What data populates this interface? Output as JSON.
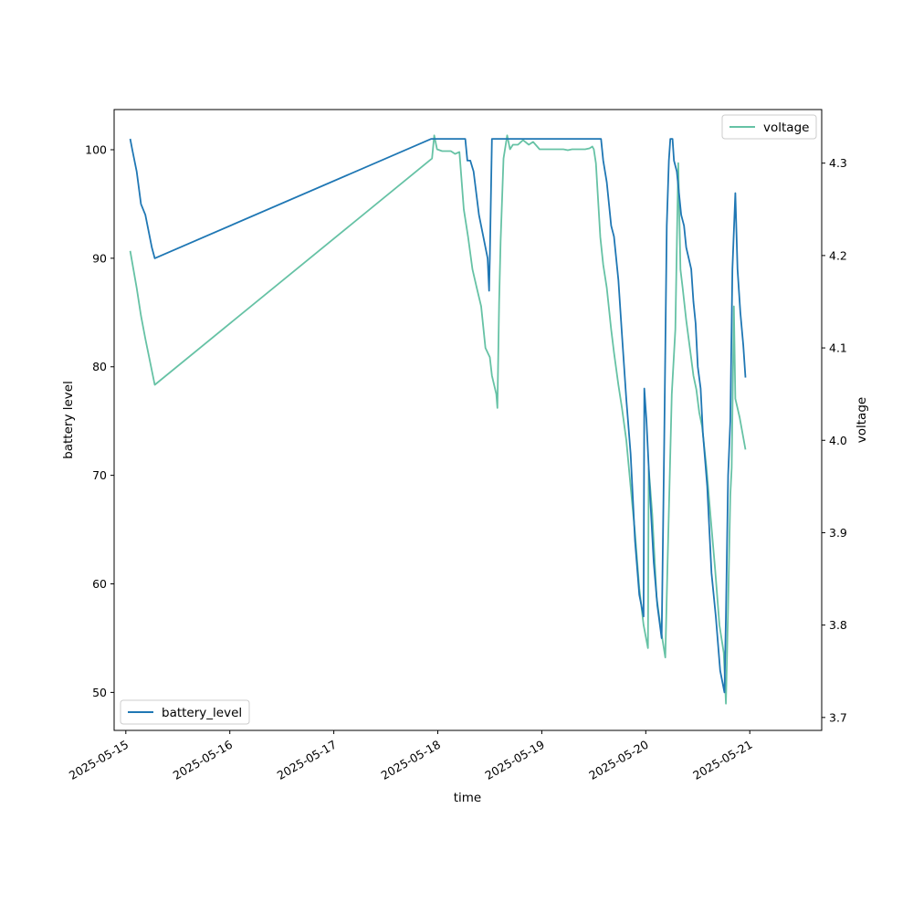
{
  "chart_data": {
    "type": "line",
    "xlabel": "time",
    "ylabel_left": "battery level",
    "ylabel_right": "voltage",
    "x_ticks": [
      "2025-05-15",
      "2025-05-16",
      "2025-05-17",
      "2025-05-18",
      "2025-05-19",
      "2025-05-20",
      "2025-05-21"
    ],
    "y_left_ticks": [
      50,
      60,
      70,
      80,
      90,
      100
    ],
    "y_right_ticks": [
      "3.7",
      "3.8",
      "3.9",
      "4.0",
      "4.1",
      "4.2",
      "4.3"
    ],
    "x_range": [
      "2025-05-14T21:18",
      "2025-05-21T16:36"
    ],
    "y_left_range": [
      46.5,
      103.7
    ],
    "y_right_range": [
      3.686,
      4.358
    ],
    "grid": false,
    "series": [
      {
        "name": "battery_level",
        "axis": "left",
        "color": "#1f77b4",
        "legend_position": "lower-left",
        "points": [
          [
            "2025-05-15T01:00",
            101
          ],
          [
            "2025-05-15T01:30",
            100
          ],
          [
            "2025-05-15T02:30",
            98
          ],
          [
            "2025-05-15T03:30",
            95
          ],
          [
            "2025-05-15T04:30",
            94
          ],
          [
            "2025-05-15T06:00",
            91
          ],
          [
            "2025-05-15T06:40",
            90
          ],
          [
            "2025-05-17T22:30",
            101
          ],
          [
            "2025-05-18T06:20",
            101
          ],
          [
            "2025-05-18T06:50",
            99
          ],
          [
            "2025-05-18T07:30",
            99
          ],
          [
            "2025-05-18T08:15",
            98
          ],
          [
            "2025-05-18T09:30",
            94
          ],
          [
            "2025-05-18T11:30",
            90
          ],
          [
            "2025-05-18T11:50",
            87
          ],
          [
            "2025-05-18T12:00",
            90
          ],
          [
            "2025-05-18T12:30",
            101
          ],
          [
            "2025-05-19T13:40",
            101
          ],
          [
            "2025-05-19T14:10",
            99
          ],
          [
            "2025-05-19T15:00",
            97
          ],
          [
            "2025-05-19T16:00",
            93
          ],
          [
            "2025-05-19T16:40",
            92
          ],
          [
            "2025-05-19T17:40",
            88
          ],
          [
            "2025-05-19T18:30",
            83
          ],
          [
            "2025-05-19T19:30",
            77
          ],
          [
            "2025-05-19T20:30",
            72
          ],
          [
            "2025-05-19T21:30",
            64
          ],
          [
            "2025-05-19T22:30",
            59
          ],
          [
            "2025-05-19T23:30",
            57
          ],
          [
            "2025-05-19T23:40",
            78
          ],
          [
            "2025-05-20T00:10",
            75
          ],
          [
            "2025-05-20T01:00",
            68
          ],
          [
            "2025-05-20T01:50",
            62
          ],
          [
            "2025-05-20T02:40",
            58
          ],
          [
            "2025-05-20T03:40",
            55
          ],
          [
            "2025-05-20T04:15",
            73
          ],
          [
            "2025-05-20T04:50",
            93
          ],
          [
            "2025-05-20T05:20",
            99
          ],
          [
            "2025-05-20T05:40",
            101
          ],
          [
            "2025-05-20T06:10",
            101
          ],
          [
            "2025-05-20T06:30",
            99
          ],
          [
            "2025-05-20T07:10",
            98
          ],
          [
            "2025-05-20T08:10",
            94
          ],
          [
            "2025-05-20T08:50",
            93
          ],
          [
            "2025-05-20T09:20",
            91
          ],
          [
            "2025-05-20T10:30",
            89
          ],
          [
            "2025-05-20T11:00",
            86
          ],
          [
            "2025-05-20T11:30",
            84
          ],
          [
            "2025-05-20T12:00",
            80
          ],
          [
            "2025-05-20T12:40",
            78
          ],
          [
            "2025-05-20T13:10",
            74
          ],
          [
            "2025-05-20T14:10",
            69
          ],
          [
            "2025-05-20T15:10",
            61
          ],
          [
            "2025-05-20T16:10",
            57
          ],
          [
            "2025-05-20T17:10",
            52
          ],
          [
            "2025-05-20T18:10",
            50
          ],
          [
            "2025-05-20T18:30",
            57
          ],
          [
            "2025-05-20T19:00",
            70
          ],
          [
            "2025-05-20T19:30",
            75
          ],
          [
            "2025-05-20T20:00",
            89
          ],
          [
            "2025-05-20T20:40",
            96
          ],
          [
            "2025-05-20T21:10",
            89
          ],
          [
            "2025-05-20T21:50",
            85
          ],
          [
            "2025-05-20T22:30",
            82
          ],
          [
            "2025-05-20T23:00",
            79
          ]
        ]
      },
      {
        "name": "voltage",
        "axis": "right",
        "color": "#66c2a5",
        "legend_position": "upper-right",
        "points": [
          [
            "2025-05-15T01:00",
            4.205
          ],
          [
            "2025-05-15T02:30",
            4.165
          ],
          [
            "2025-05-15T03:30",
            4.135
          ],
          [
            "2025-05-15T04:30",
            4.11
          ],
          [
            "2025-05-15T06:40",
            4.06
          ],
          [
            "2025-05-17T22:40",
            4.305
          ],
          [
            "2025-05-17T23:10",
            4.33
          ],
          [
            "2025-05-17T23:50",
            4.315
          ],
          [
            "2025-05-18T01:00",
            4.313
          ],
          [
            "2025-05-18T03:00",
            4.313
          ],
          [
            "2025-05-18T04:00",
            4.31
          ],
          [
            "2025-05-18T05:00",
            4.312
          ],
          [
            "2025-05-18T06:00",
            4.25
          ],
          [
            "2025-05-18T07:00",
            4.22
          ],
          [
            "2025-05-18T08:00",
            4.185
          ],
          [
            "2025-05-18T09:00",
            4.165
          ],
          [
            "2025-05-18T10:00",
            4.145
          ],
          [
            "2025-05-18T11:00",
            4.1
          ],
          [
            "2025-05-18T12:00",
            4.09
          ],
          [
            "2025-05-18T12:30",
            4.07
          ],
          [
            "2025-05-18T13:30",
            4.05
          ],
          [
            "2025-05-18T13:45",
            4.035
          ],
          [
            "2025-05-18T14:10",
            4.15
          ],
          [
            "2025-05-18T14:30",
            4.215
          ],
          [
            "2025-05-18T15:10",
            4.305
          ],
          [
            "2025-05-18T15:40",
            4.32
          ],
          [
            "2025-05-18T16:00",
            4.33
          ],
          [
            "2025-05-18T16:40",
            4.315
          ],
          [
            "2025-05-18T17:20",
            4.32
          ],
          [
            "2025-05-18T18:30",
            4.32
          ],
          [
            "2025-05-18T19:40",
            4.325
          ],
          [
            "2025-05-18T21:00",
            4.32
          ],
          [
            "2025-05-18T22:00",
            4.323
          ],
          [
            "2025-05-18T23:30",
            4.315
          ],
          [
            "2025-05-19T02:00",
            4.315
          ],
          [
            "2025-05-19T05:00",
            4.315
          ],
          [
            "2025-05-19T06:00",
            4.314
          ],
          [
            "2025-05-19T07:00",
            4.315
          ],
          [
            "2025-05-19T10:00",
            4.315
          ],
          [
            "2025-05-19T11:00",
            4.316
          ],
          [
            "2025-05-19T11:40",
            4.318
          ],
          [
            "2025-05-19T12:00",
            4.315
          ],
          [
            "2025-05-19T12:30",
            4.3
          ],
          [
            "2025-05-19T13:30",
            4.22
          ],
          [
            "2025-05-19T14:10",
            4.19
          ],
          [
            "2025-05-19T15:00",
            4.165
          ],
          [
            "2025-05-19T16:00",
            4.12
          ],
          [
            "2025-05-19T16:40",
            4.095
          ],
          [
            "2025-05-19T17:40",
            4.06
          ],
          [
            "2025-05-19T18:30",
            4.035
          ],
          [
            "2025-05-19T19:30",
            4.0
          ],
          [
            "2025-05-19T20:30",
            3.95
          ],
          [
            "2025-05-19T21:30",
            3.9
          ],
          [
            "2025-05-19T22:30",
            3.84
          ],
          [
            "2025-05-19T23:30",
            3.8
          ],
          [
            "2025-05-20T00:30",
            3.775
          ],
          [
            "2025-05-20T00:40",
            3.97
          ],
          [
            "2025-05-20T01:30",
            3.92
          ],
          [
            "2025-05-20T02:30",
            3.83
          ],
          [
            "2025-05-20T03:30",
            3.795
          ],
          [
            "2025-05-20T04:30",
            3.765
          ],
          [
            "2025-05-20T05:00",
            3.86
          ],
          [
            "2025-05-20T06:00",
            4.05
          ],
          [
            "2025-05-20T06:50",
            4.12
          ],
          [
            "2025-05-20T07:30",
            4.3
          ],
          [
            "2025-05-20T08:00",
            4.185
          ],
          [
            "2025-05-20T08:30",
            4.165
          ],
          [
            "2025-05-20T09:20",
            4.13
          ],
          [
            "2025-05-20T10:10",
            4.1
          ],
          [
            "2025-05-20T11:00",
            4.07
          ],
          [
            "2025-05-20T11:40",
            4.055
          ],
          [
            "2025-05-20T12:20",
            4.03
          ],
          [
            "2025-05-20T13:00",
            4.015
          ],
          [
            "2025-05-20T14:00",
            3.97
          ],
          [
            "2025-05-20T15:00",
            3.915
          ],
          [
            "2025-05-20T16:00",
            3.86
          ],
          [
            "2025-05-20T17:00",
            3.8
          ],
          [
            "2025-05-20T18:00",
            3.77
          ],
          [
            "2025-05-20T18:30",
            3.715
          ],
          [
            "2025-05-20T19:00",
            3.82
          ],
          [
            "2025-05-20T19:30",
            3.94
          ],
          [
            "2025-05-20T19:50",
            3.97
          ],
          [
            "2025-05-20T20:20",
            4.145
          ],
          [
            "2025-05-20T20:40",
            4.045
          ],
          [
            "2025-05-20T21:40",
            4.025
          ],
          [
            "2025-05-20T23:00",
            3.99
          ]
        ]
      }
    ]
  }
}
